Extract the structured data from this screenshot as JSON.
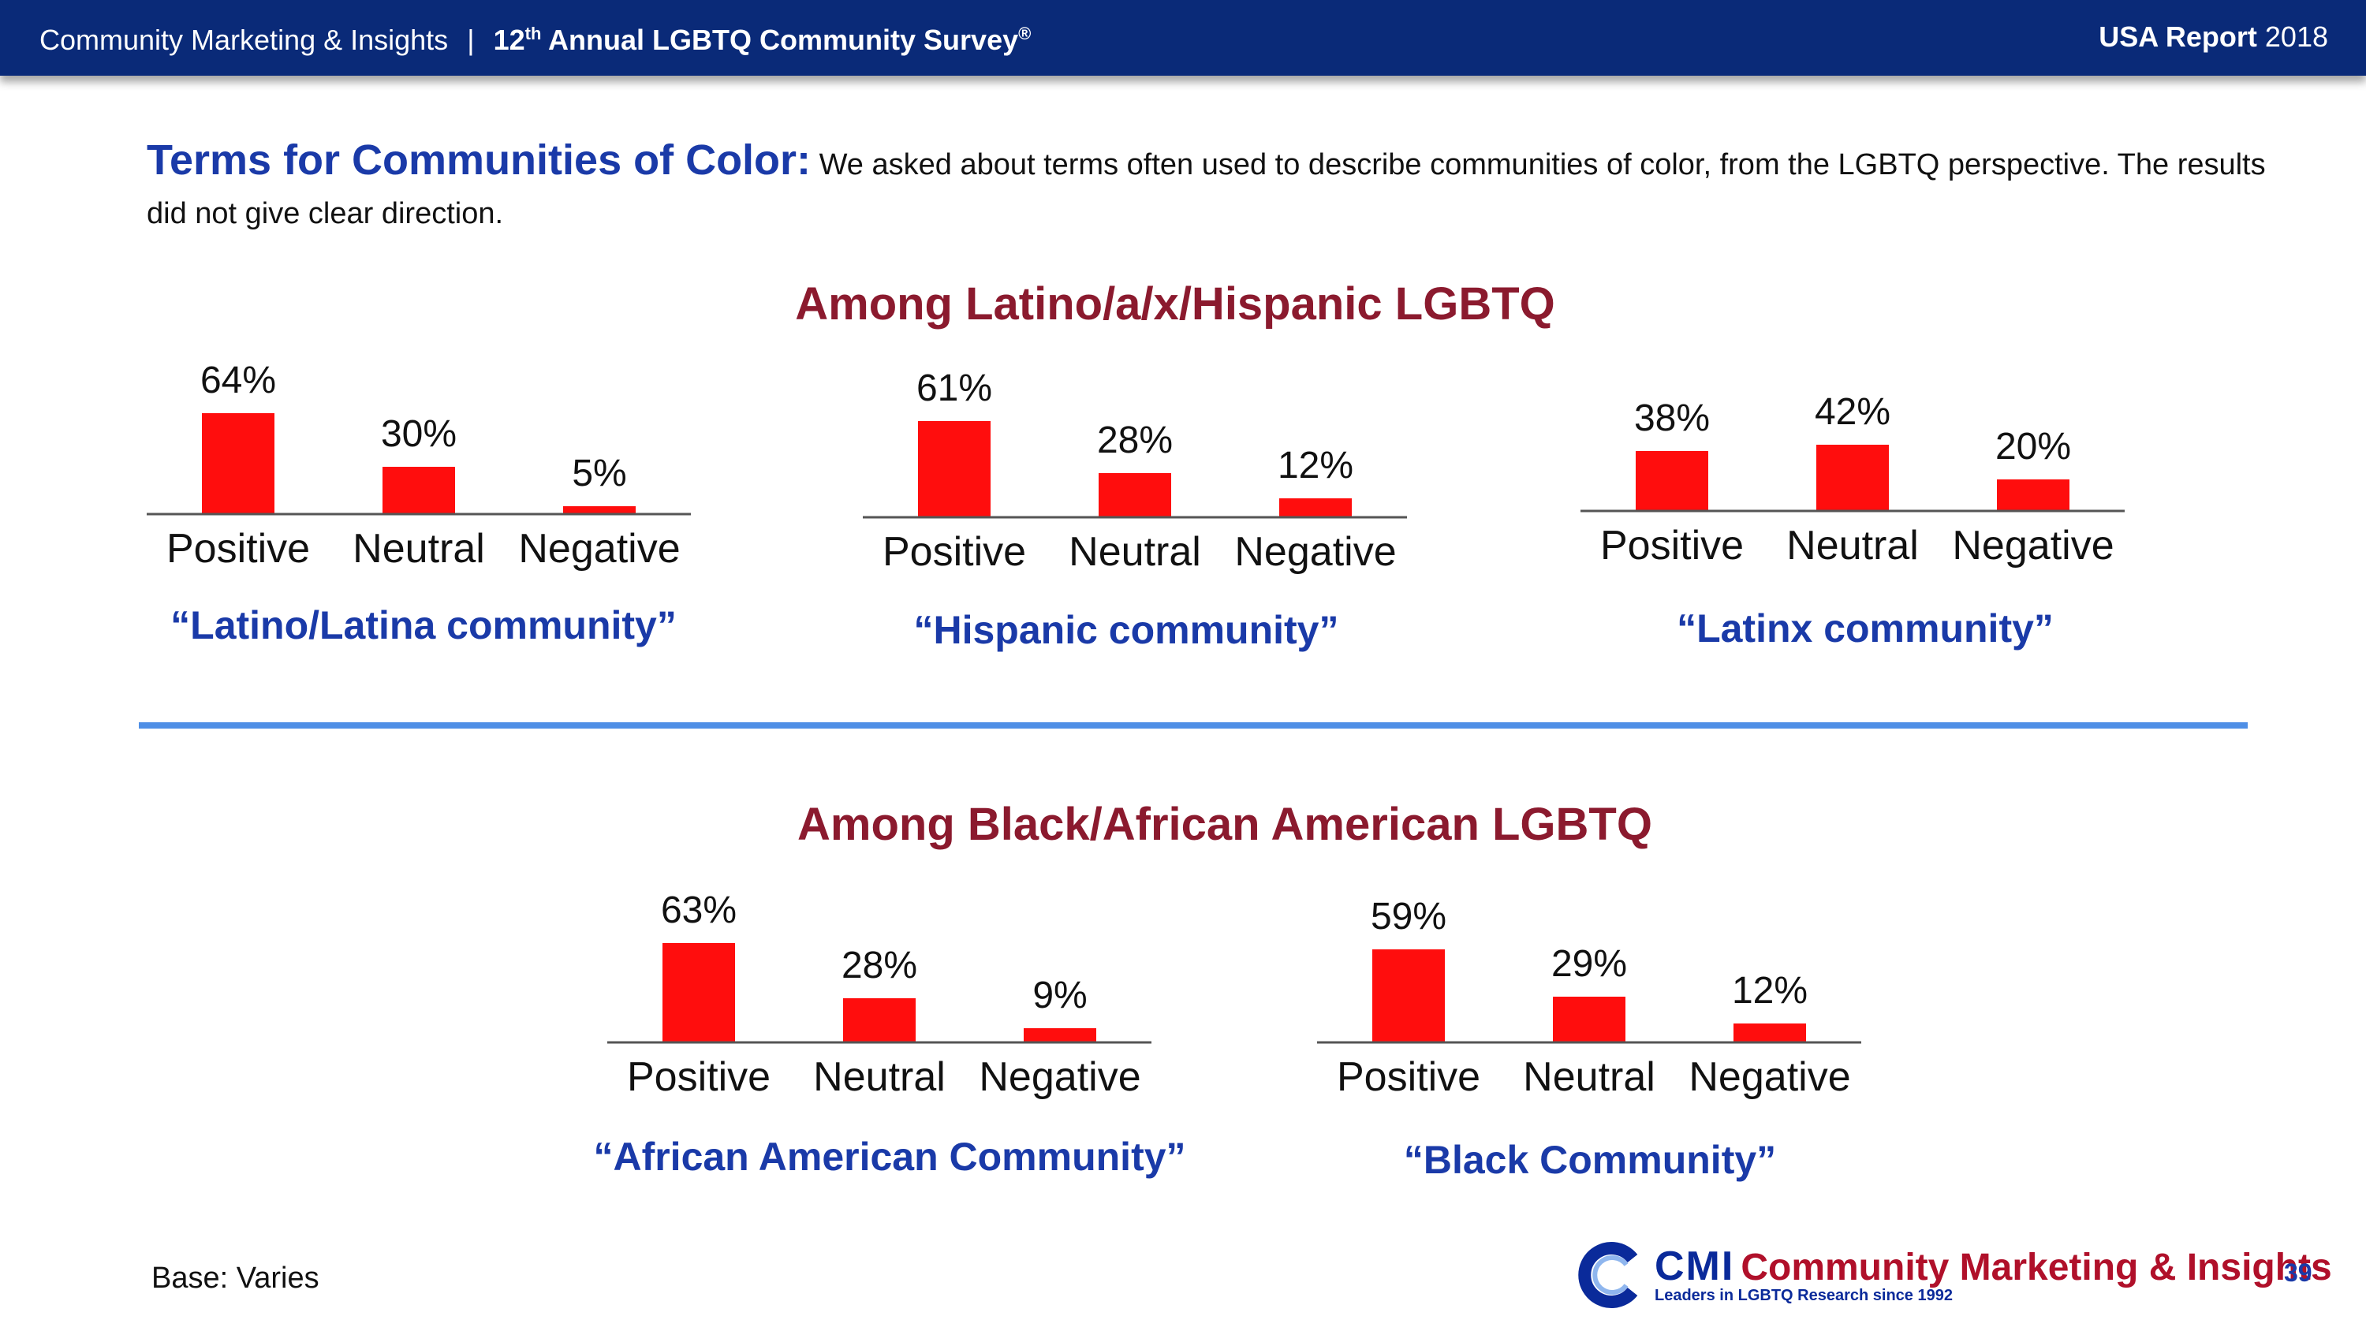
{
  "header": {
    "org": "Community Marketing & Insights",
    "separator": "|",
    "survey_prefix": "12",
    "survey_sup": "th",
    "survey_title": " Annual LGBTQ Community Survey",
    "survey_reg": "®",
    "report_label": "USA Report",
    "report_year": "2018"
  },
  "intro": {
    "term": "Terms for Communities of Color:",
    "text": "We asked about terms often used to describe communities of color, from the LGBTQ perspective. The results did not give clear direction."
  },
  "sections": {
    "latino_title": "Among Latino/a/x/Hispanic LGBTQ",
    "black_title": "Among Black/African American LGBTQ"
  },
  "chart_data": [
    {
      "type": "bar",
      "group": "Among Latino/a/x/Hispanic LGBTQ",
      "title": "“Latino/Latina community”",
      "categories": [
        "Positive",
        "Neutral",
        "Negative"
      ],
      "values": [
        64,
        30,
        5
      ],
      "labels": [
        "64%",
        "30%",
        "5%"
      ],
      "ylim": [
        0,
        100
      ],
      "color": "#ff0d0d"
    },
    {
      "type": "bar",
      "group": "Among Latino/a/x/Hispanic LGBTQ",
      "title": "“Hispanic community”",
      "categories": [
        "Positive",
        "Neutral",
        "Negative"
      ],
      "values": [
        61,
        28,
        12
      ],
      "labels": [
        "61%",
        "28%",
        "12%"
      ],
      "ylim": [
        0,
        100
      ],
      "color": "#ff0d0d"
    },
    {
      "type": "bar",
      "group": "Among Latino/a/x/Hispanic LGBTQ",
      "title": "“Latinx community”",
      "categories": [
        "Positive",
        "Neutral",
        "Negative"
      ],
      "values": [
        38,
        42,
        20
      ],
      "labels": [
        "38%",
        "42%",
        "20%"
      ],
      "ylim": [
        0,
        100
      ],
      "color": "#ff0d0d"
    },
    {
      "type": "bar",
      "group": "Among Black/African American LGBTQ",
      "title": "“African American Community”",
      "categories": [
        "Positive",
        "Neutral",
        "Negative"
      ],
      "values": [
        63,
        28,
        9
      ],
      "labels": [
        "63%",
        "28%",
        "9%"
      ],
      "ylim": [
        0,
        100
      ],
      "color": "#ff0d0d"
    },
    {
      "type": "bar",
      "group": "Among Black/African American LGBTQ",
      "title": "“Black Community”",
      "categories": [
        "Positive",
        "Neutral",
        "Negative"
      ],
      "values": [
        59,
        29,
        12
      ],
      "labels": [
        "59%",
        "29%",
        "12%"
      ],
      "ylim": [
        0,
        100
      ],
      "color": "#ff0d0d"
    }
  ],
  "footer": {
    "base": "Base: Varies",
    "logo_cmi": "CMI",
    "logo_name": "Community Marketing & Insights",
    "logo_tagline": "Leaders in LGBTQ Research since 1992",
    "page_number": "39"
  },
  "colors": {
    "header_bg": "#0a2a78",
    "accent_blue": "#1a3aa8",
    "title_red": "#8b1a2e",
    "bar_red": "#ff0d0d",
    "divider": "#4f8fe6"
  }
}
